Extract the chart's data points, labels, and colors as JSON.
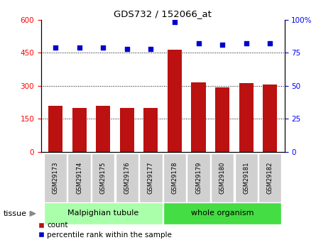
{
  "title": "GDS732 / 152066_at",
  "samples": [
    "GSM29173",
    "GSM29174",
    "GSM29175",
    "GSM29176",
    "GSM29177",
    "GSM29178",
    "GSM29179",
    "GSM29180",
    "GSM29181",
    "GSM29182"
  ],
  "counts": [
    210,
    200,
    208,
    198,
    200,
    465,
    315,
    293,
    313,
    307
  ],
  "percentiles": [
    79,
    79,
    79,
    78,
    78,
    98,
    82,
    81,
    82,
    82
  ],
  "tissue_groups": [
    {
      "label": "Malpighian tubule",
      "start": 0,
      "end": 5,
      "color": "#aaffaa"
    },
    {
      "label": "whole organism",
      "start": 5,
      "end": 10,
      "color": "#44dd44"
    }
  ],
  "bar_color": "#bb1111",
  "dot_color": "#0000cc",
  "left_ylim": [
    0,
    600
  ],
  "right_ylim": [
    0,
    100
  ],
  "left_yticks": [
    0,
    150,
    300,
    450,
    600
  ],
  "right_yticks": [
    0,
    25,
    50,
    75,
    100
  ],
  "right_yticklabels": [
    "0",
    "25",
    "50",
    "75",
    "100%"
  ],
  "grid_values": [
    150,
    300,
    450
  ],
  "legend_count_label": "count",
  "legend_percentile_label": "percentile rank within the sample",
  "tissue_label": "tissue"
}
